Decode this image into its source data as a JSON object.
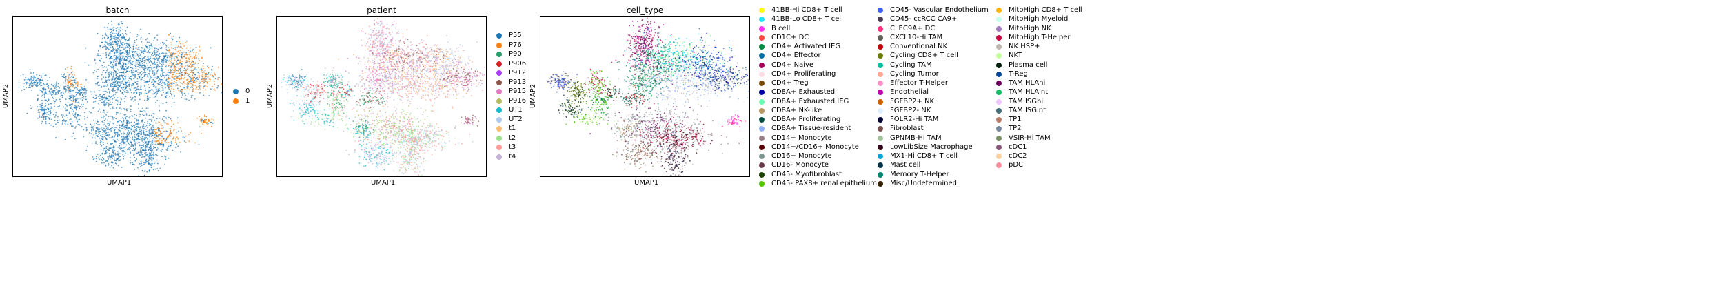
{
  "chart_data": [
    {
      "type": "scatter",
      "title": "batch",
      "xlabel": "UMAP1",
      "ylabel": "UMAP2",
      "legend_placement": "right",
      "grid": false,
      "series": [
        {
          "name": "0",
          "color": "#1f77b4"
        },
        {
          "name": "1",
          "color": "#ff7f0e"
        }
      ]
    },
    {
      "type": "scatter",
      "title": "patient",
      "xlabel": "UMAP1",
      "ylabel": "UMAP2",
      "legend_placement": "right",
      "grid": false,
      "series": [
        {
          "name": "P55",
          "color": "#1f77b4"
        },
        {
          "name": "P76",
          "color": "#ff7f0e"
        },
        {
          "name": "P90",
          "color": "#279e68"
        },
        {
          "name": "P906",
          "color": "#d62728"
        },
        {
          "name": "P912",
          "color": "#aa40fc"
        },
        {
          "name": "P913",
          "color": "#8c564b"
        },
        {
          "name": "P915",
          "color": "#e377c2"
        },
        {
          "name": "P916",
          "color": "#b5bd61"
        },
        {
          "name": "UT1",
          "color": "#17becf"
        },
        {
          "name": "UT2",
          "color": "#aec7e8"
        },
        {
          "name": "t1",
          "color": "#ffbb78"
        },
        {
          "name": "t2",
          "color": "#98df8a"
        },
        {
          "name": "t3",
          "color": "#ff9896"
        },
        {
          "name": "t4",
          "color": "#c5b0d5"
        }
      ]
    },
    {
      "type": "scatter",
      "title": "cell_type",
      "xlabel": "UMAP1",
      "ylabel": "UMAP2",
      "legend_placement": "right",
      "grid": false,
      "series": [
        {
          "name": "41BB-Hi CD8+ T cell",
          "color": "#ffff00"
        },
        {
          "name": "41BB-Lo CD8+ T cell",
          "color": "#1ce6ff"
        },
        {
          "name": "B cell",
          "color": "#ff34ff"
        },
        {
          "name": "CD1C+ DC",
          "color": "#ff4a46"
        },
        {
          "name": "CD4+ Activated IEG",
          "color": "#008941"
        },
        {
          "name": "CD4+ Effector",
          "color": "#006fa6"
        },
        {
          "name": "CD4+ Naive",
          "color": "#a30059"
        },
        {
          "name": "CD4+ Proliferating",
          "color": "#ffdbe5"
        },
        {
          "name": "CD4+ Treg",
          "color": "#7a4900"
        },
        {
          "name": "CD8A+ Exhausted",
          "color": "#0000a6"
        },
        {
          "name": "CD8A+ Exhausted IEG",
          "color": "#63ffac"
        },
        {
          "name": "CD8A+ NK-like",
          "color": "#b79762"
        },
        {
          "name": "CD8A+ Proliferating",
          "color": "#004d43"
        },
        {
          "name": "CD8A+ Tissue-resident",
          "color": "#8fb0ff"
        },
        {
          "name": "CD14+ Monocyte",
          "color": "#997d87"
        },
        {
          "name": "CD14+/CD16+ Monocyte",
          "color": "#5a0007"
        },
        {
          "name": "CD16+ Monocyte",
          "color": "#809693"
        },
        {
          "name": "CD16- Monocyte",
          "color": "#6a3a4c"
        },
        {
          "name": "CD45- Myofibroblast",
          "color": "#1b4400"
        },
        {
          "name": "CD45- PAX8+ renal epithelium",
          "color": "#4fc601"
        },
        {
          "name": "CD45- Vascular Endothelium",
          "color": "#3b5dff"
        },
        {
          "name": "CD45- ccRCC CA9+",
          "color": "#4a3b53"
        },
        {
          "name": "CLEC9A+ DC",
          "color": "#ff2f80"
        },
        {
          "name": "CXCL10-Hi TAM",
          "color": "#61615a"
        },
        {
          "name": "Conventional NK",
          "color": "#ba0900"
        },
        {
          "name": "Cycling CD8+ T cell",
          "color": "#6b7900"
        },
        {
          "name": "Cycling TAM",
          "color": "#00c2a0"
        },
        {
          "name": "Cycling Tumor",
          "color": "#ffaa92"
        },
        {
          "name": "Effector T-Helper",
          "color": "#ff90c9"
        },
        {
          "name": "Endothelial",
          "color": "#b903aa"
        },
        {
          "name": "FGFBP2+ NK",
          "color": "#d16100"
        },
        {
          "name": "FGFBP2- NK",
          "color": "#ddefff"
        },
        {
          "name": "FOLR2-Hi TAM",
          "color": "#000035"
        },
        {
          "name": "Fibroblast",
          "color": "#7b4f4b"
        },
        {
          "name": "GPNMB-Hi TAM",
          "color": "#a1c299"
        },
        {
          "name": "LowLibSize Macrophage",
          "color": "#300018"
        },
        {
          "name": "MX1-Hi CD8+ T cell",
          "color": "#0aa6d8"
        },
        {
          "name": "Mast cell",
          "color": "#013349"
        },
        {
          "name": "Memory T-Helper",
          "color": "#00846f"
        },
        {
          "name": "Misc/Undetermined",
          "color": "#372101"
        },
        {
          "name": "MitoHigh CD8+ T cell",
          "color": "#ffb500"
        },
        {
          "name": "MitoHigh Myeloid",
          "color": "#c2ffed"
        },
        {
          "name": "MitoHigh NK",
          "color": "#a079bf"
        },
        {
          "name": "MitoHigh T-Helper",
          "color": "#cc0744"
        },
        {
          "name": "NK HSP+",
          "color": "#c0b9b2"
        },
        {
          "name": "NKT",
          "color": "#c2ff99"
        },
        {
          "name": "Plasma cell",
          "color": "#001e09"
        },
        {
          "name": "T-Reg",
          "color": "#00489c"
        },
        {
          "name": "TAM HLAhi",
          "color": "#6f0062"
        },
        {
          "name": "TAM HLAint",
          "color": "#0cbd66"
        },
        {
          "name": "TAM ISGhi",
          "color": "#eec3ff"
        },
        {
          "name": "TAM ISGint",
          "color": "#456d75"
        },
        {
          "name": "TP1",
          "color": "#b77b68"
        },
        {
          "name": "TP2",
          "color": "#7a87a1"
        },
        {
          "name": "VSIR-Hi TAM",
          "color": "#788d66"
        },
        {
          "name": "cDC1",
          "color": "#885578"
        },
        {
          "name": "cDC2",
          "color": "#fad09f"
        },
        {
          "name": "pDC",
          "color": "#ff8a9a"
        }
      ]
    }
  ]
}
